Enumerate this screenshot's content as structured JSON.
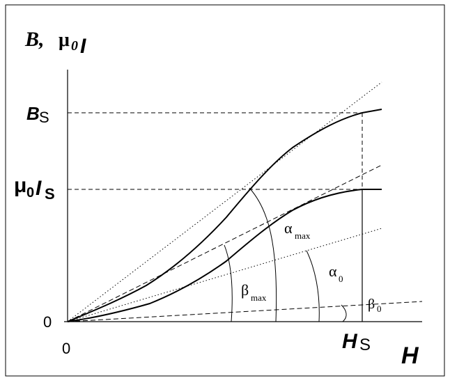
{
  "diagram": {
    "y_axis_label_main": "B,",
    "y_axis_label_mu": "μ",
    "y_axis_label_mu_sub": "0",
    "y_axis_label_I": "I",
    "x_axis_label": "H",
    "origin_y": "0",
    "origin_x": "0",
    "tick_bs_main": "B",
    "tick_bs_sub": "S",
    "tick_mu0is_mu": "μ",
    "tick_mu0is_sub0": "0",
    "tick_mu0is_I": "I",
    "tick_mu0is_subS": "S",
    "tick_hs_main": "H",
    "tick_hs_sub": "S",
    "angle_alpha_max": "α",
    "angle_alpha_max_sub": "max",
    "angle_alpha_0": "α",
    "angle_alpha_0_sub": "0",
    "angle_beta_max": "β",
    "angle_beta_max_sub": "max",
    "angle_beta_0": "β",
    "angle_beta_0_sub": "0",
    "curves": [
      "B(H)",
      "μ0I(H)"
    ]
  }
}
